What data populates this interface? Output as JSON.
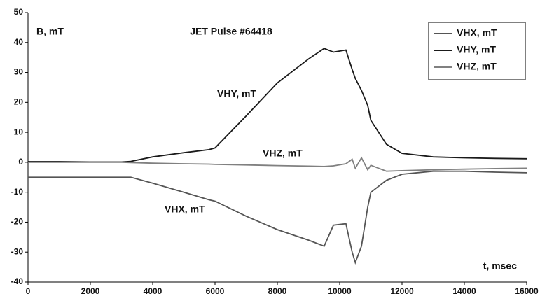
{
  "chart_data": {
    "type": "line",
    "title": "JET Pulse #64418",
    "y_label": "B, mT",
    "x_label": "t, msec",
    "annotations": [
      "VHY, mT",
      "VHZ, mT",
      "VHX, mT"
    ],
    "x": [
      0,
      1000,
      2000,
      3000,
      3300,
      4000,
      5000,
      5800,
      6000,
      7000,
      8000,
      9000,
      9500,
      9800,
      10200,
      10400,
      10500,
      10700,
      10900,
      11000,
      11500,
      12000,
      13000,
      14000,
      15000,
      16000
    ],
    "series": [
      {
        "name": "VHX, mT",
        "color": "#555555",
        "values": [
          -5,
          -5,
          -5,
          -5,
          -5,
          -7,
          -10,
          -12.5,
          -13,
          -18,
          -22.5,
          -26,
          -28,
          -21,
          -20.5,
          -30,
          -33.5,
          -28,
          -15,
          -10,
          -6,
          -4,
          -3,
          -3,
          -3.3,
          -3.5
        ]
      },
      {
        "name": "VHY, mT",
        "color": "#1a1a1a",
        "values": [
          0.2,
          0.2,
          0.1,
          0.1,
          0.3,
          1.8,
          3.2,
          4.2,
          4.8,
          15.5,
          26.5,
          34.5,
          38,
          36.8,
          37.5,
          31,
          28,
          24,
          19,
          14,
          6,
          3,
          1.8,
          1.5,
          1.3,
          1.2
        ]
      },
      {
        "name": "VHZ, mT",
        "color": "#808080",
        "values": [
          0,
          0,
          0,
          0,
          -0.1,
          -0.3,
          -0.5,
          -0.6,
          -0.7,
          -0.9,
          -1.1,
          -1.3,
          -1.4,
          -1.2,
          -0.5,
          1,
          -2,
          1.5,
          -2.5,
          -1,
          -3,
          -2.8,
          -2.5,
          -2.3,
          -2.1,
          -2
        ]
      }
    ],
    "xlim": [
      0,
      16000
    ],
    "xticks": [
      0,
      2000,
      4000,
      6000,
      8000,
      10000,
      12000,
      14000,
      16000
    ],
    "ylim": [
      -40,
      50
    ],
    "yticks": [
      -40,
      -30,
      -20,
      -10,
      0,
      10,
      20,
      30,
      40,
      50
    ],
    "legend": "upper right",
    "grid": false
  }
}
